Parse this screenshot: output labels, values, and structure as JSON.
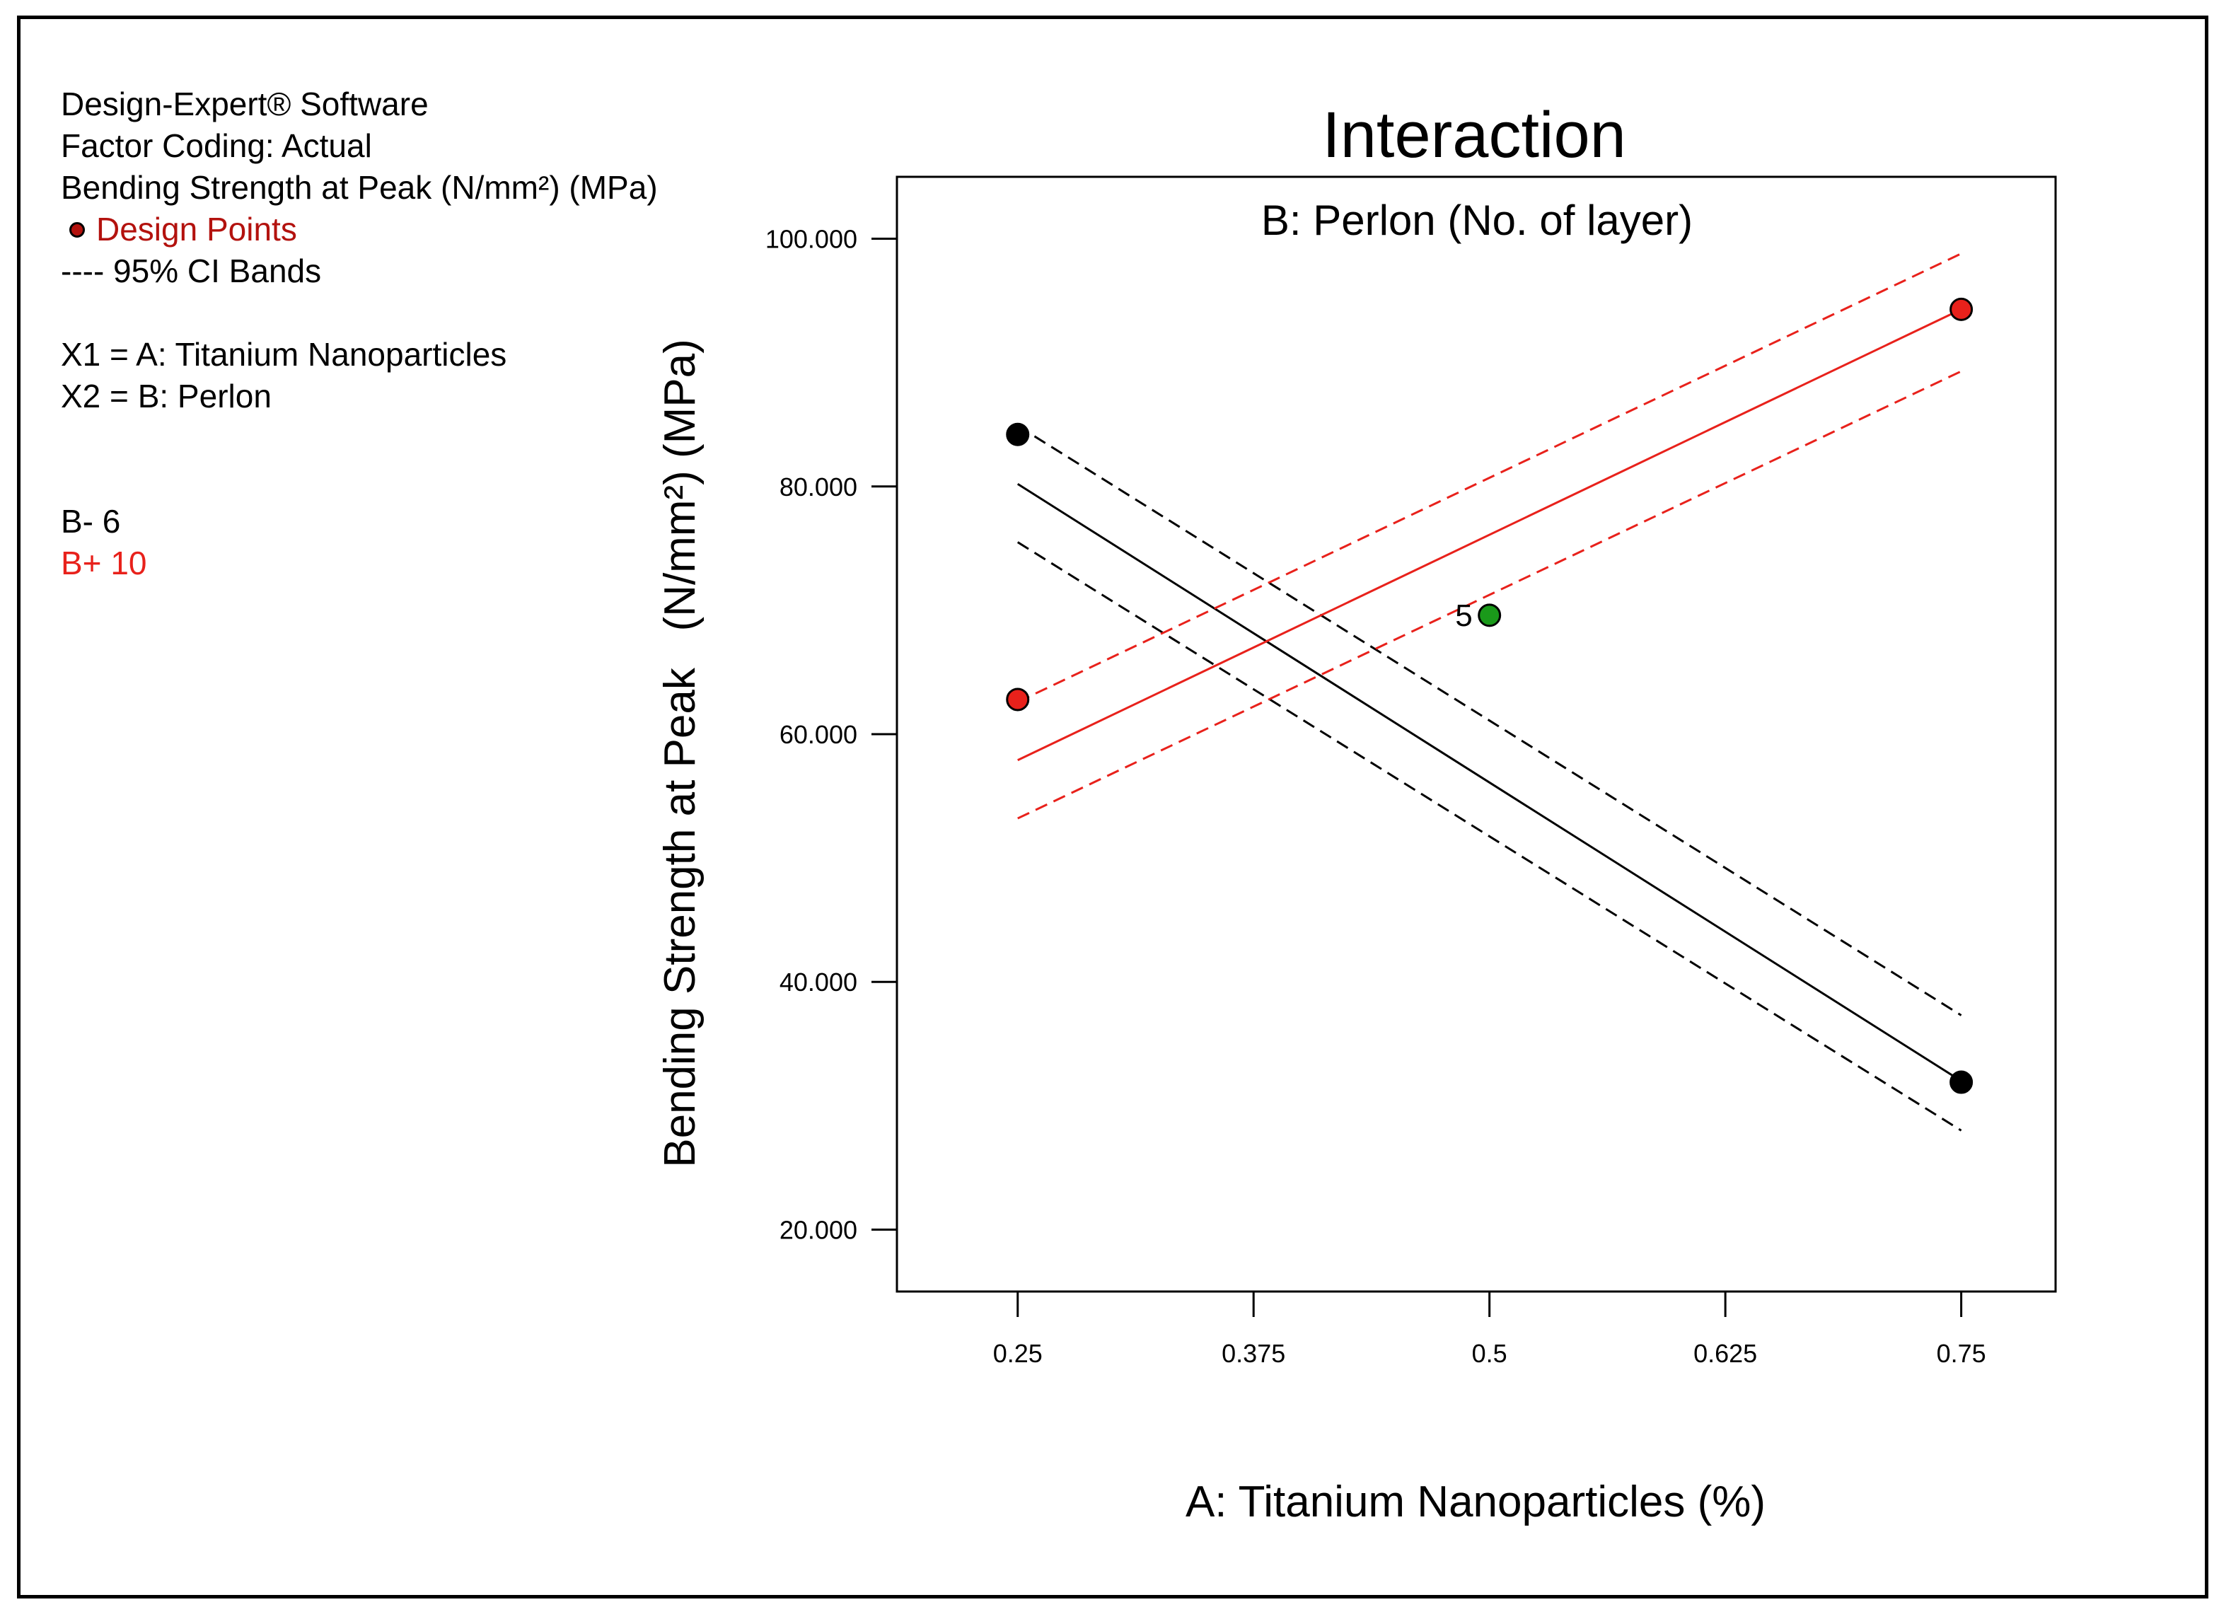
{
  "info_panel": {
    "software": "Design-Expert® Software",
    "factor_coding": "Factor Coding: Actual",
    "response": "Bending Strength at Peak   (N/mm²) (MPa)",
    "design_points_label": "Design Points",
    "ci_bands_label": "---- 95% CI Bands",
    "x1": "X1 = A: Titanium Nanoparticles",
    "x2": "X2 = B: Perlon",
    "b_minus": "B- 6",
    "b_plus": "B+ 10"
  },
  "colors": {
    "b_minus": "#000000",
    "b_plus": "#e8211b",
    "center_point": "#1a9a1a",
    "design_point_legend": "#b3120e"
  },
  "chart_data": {
    "type": "line",
    "title": "Interaction",
    "subtitle": "B: Perlon (No. of layer)",
    "xlabel": "A: Titanium Nanoparticles (%)",
    "ylabel": "Bending Strength at Peak   (N/mm²) (MPa)",
    "xlim": [
      0.186,
      0.8
    ],
    "ylim": [
      15,
      105
    ],
    "x_ticks": [
      0.25,
      0.375,
      0.5,
      0.625,
      0.75
    ],
    "x_tick_labels": [
      "0.25",
      "0.375",
      "0.5",
      "0.625",
      "0.75"
    ],
    "y_ticks": [
      20,
      40,
      60,
      80,
      100
    ],
    "y_tick_labels": [
      "20.000",
      "40.000",
      "60.000",
      "80.000",
      "100.000"
    ],
    "series": [
      {
        "name": "B- 6",
        "color": "#000000",
        "x": [
          0.25,
          0.75
        ],
        "fit": [
          80.2,
          32.0
        ],
        "ci_upper": [
          84.9,
          37.3
        ],
        "ci_lower": [
          75.5,
          28.0
        ],
        "design_points": [
          {
            "x": 0.25,
            "y": 84.2
          },
          {
            "x": 0.75,
            "y": 31.9
          }
        ]
      },
      {
        "name": "B+ 10",
        "color": "#e8211b",
        "x": [
          0.25,
          0.75
        ],
        "fit": [
          57.9,
          94.3
        ],
        "ci_upper": [
          62.6,
          98.8
        ],
        "ci_lower": [
          53.2,
          89.3
        ],
        "design_points": [
          {
            "x": 0.25,
            "y": 62.8
          },
          {
            "x": 0.75,
            "y": 94.3
          }
        ]
      }
    ],
    "center_point": {
      "x": 0.5,
      "y": 69.6,
      "label": "5"
    }
  }
}
